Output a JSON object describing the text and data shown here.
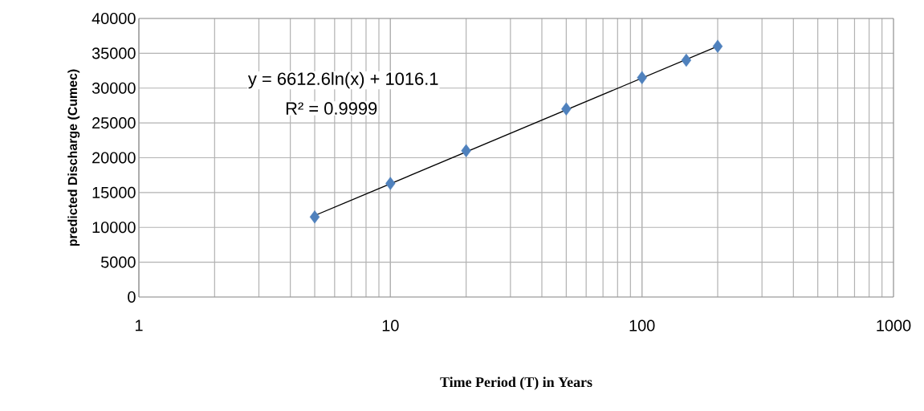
{
  "chart_data": {
    "type": "scatter",
    "xlabel": "Time Period (T) in Years",
    "ylabel": "predicted Discharge (Cumec)",
    "log": "x",
    "grid": true,
    "marker": "diamond",
    "xlim": [
      1,
      1000
    ],
    "xticks": [
      1,
      10,
      100,
      1000
    ],
    "ylim": [
      0,
      40000
    ],
    "yticks": [
      0,
      5000,
      10000,
      15000,
      20000,
      25000,
      30000,
      35000,
      40000
    ],
    "series": [
      {
        "color": "#4f81bd",
        "x": [
          5,
          10,
          20,
          50,
          100,
          150,
          200
        ],
        "values": [
          11500,
          16300,
          21000,
          27000,
          31500,
          34000,
          36000
        ]
      },
      {
        "type": "line",
        "color": "#000000",
        "marker": "none",
        "x": [
          5,
          200
        ],
        "values": [
          11700,
          36000
        ]
      }
    ],
    "annotations": [
      "y = 6612.6ln(x) + 1016.1",
      "R² = 0.9999"
    ]
  }
}
